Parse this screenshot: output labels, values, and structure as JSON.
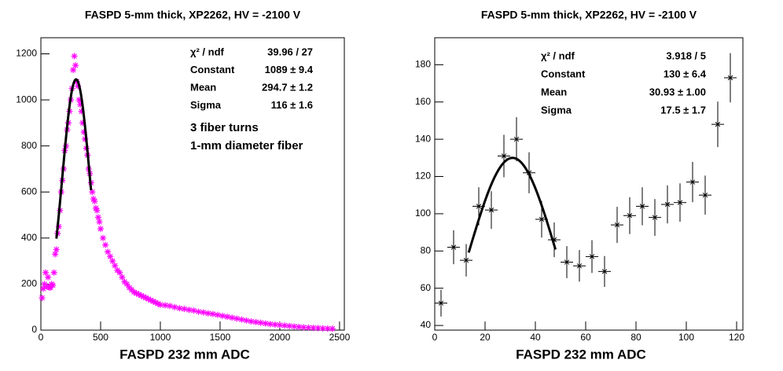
{
  "chart_data": [
    {
      "type": "scatter",
      "title": "FASPD 5-mm thick, XP2262, HV = -2100 V",
      "x_label": "FASPD 232 mm ADC",
      "color": "#ff00ff",
      "x": [
        10,
        20,
        30,
        40,
        50,
        60,
        70,
        80,
        90,
        100,
        110,
        120,
        130,
        140,
        150,
        160,
        170,
        180,
        190,
        200,
        210,
        220,
        230,
        240,
        250,
        260,
        270,
        280,
        290,
        300,
        310,
        320,
        330,
        340,
        350,
        360,
        370,
        380,
        390,
        400,
        410,
        420,
        430,
        440,
        450,
        460,
        470,
        480,
        490,
        500,
        520,
        540,
        560,
        580,
        600,
        620,
        640,
        660,
        680,
        700,
        720,
        740,
        760,
        780,
        800,
        820,
        840,
        860,
        880,
        900,
        920,
        940,
        960,
        980,
        1000,
        1040,
        1080,
        1120,
        1160,
        1200,
        1240,
        1280,
        1320,
        1360,
        1400,
        1440,
        1480,
        1520,
        1560,
        1600,
        1640,
        1680,
        1720,
        1760,
        1800,
        1840,
        1880,
        1920,
        1960,
        2000,
        2040,
        2080,
        2120,
        2160,
        2200,
        2240,
        2280,
        2320,
        2360,
        2400,
        2440
      ],
      "values": [
        140,
        180,
        200,
        250,
        190,
        230,
        185,
        185,
        200,
        195,
        250,
        330,
        350,
        420,
        450,
        520,
        600,
        650,
        700,
        780,
        800,
        870,
        900,
        950,
        1000,
        1050,
        1130,
        1190,
        1150,
        1080,
        1060,
        1000,
        980,
        950,
        900,
        860,
        830,
        790,
        760,
        700,
        680,
        640,
        600,
        570,
        560,
        530,
        520,
        490,
        470,
        440,
        400,
        370,
        340,
        320,
        300,
        280,
        260,
        250,
        230,
        210,
        200,
        185,
        175,
        165,
        160,
        155,
        150,
        145,
        140,
        135,
        130,
        125,
        120,
        115,
        110,
        108,
        105,
        100,
        95,
        92,
        88,
        85,
        80,
        77,
        73,
        70,
        66,
        62,
        58,
        54,
        50,
        46,
        42,
        38,
        35,
        32,
        29,
        26,
        24,
        22,
        20,
        18,
        16,
        14,
        12,
        11,
        10,
        9,
        8,
        7,
        6
      ],
      "xlim": [
        0,
        2540
      ],
      "ylim": [
        0,
        1270
      ],
      "xticks": [
        0,
        500,
        1000,
        1500,
        2000,
        2500
      ],
      "yticks": [
        0,
        200,
        400,
        600,
        800,
        1000,
        1200
      ],
      "fit": {
        "constant": 1089,
        "mean": 294.7,
        "sigma": 116,
        "range": [
          130,
          420
        ],
        "color": "#000000"
      },
      "stats": [
        {
          "label": "χ² / ndf",
          "value": "39.96 / 27"
        },
        {
          "label": "Constant",
          "value": "1089 ± 9.4"
        },
        {
          "label": "Mean",
          "value": "294.7 ± 1.2"
        },
        {
          "label": "Sigma",
          "value": "116 ± 1.6"
        }
      ],
      "annotations": [
        {
          "text": "3 fiber turns",
          "color": "#0000ff"
        },
        {
          "text": "1-mm diameter fiber",
          "color": "#ff0000"
        }
      ]
    },
    {
      "type": "errorbar",
      "title": "FASPD 5-mm thick, XP2262, HV = -2100 V",
      "x_label": "FASPD 232 mm ADC",
      "color": "#000000",
      "x": [
        2.5,
        7.5,
        12.5,
        17.5,
        22.5,
        27.5,
        32.5,
        37.5,
        42.5,
        47.5,
        52.5,
        57.5,
        62.5,
        67.5,
        72.5,
        77.5,
        82.5,
        87.5,
        92.5,
        97.5,
        102.5,
        107.5,
        112.5,
        117.5
      ],
      "values": [
        52,
        82,
        75,
        104,
        102,
        131,
        140,
        122,
        97,
        86,
        74,
        72,
        77,
        69,
        94,
        99,
        104,
        98,
        105,
        106,
        117,
        110,
        148,
        173
      ],
      "errors": [
        7.2,
        9.1,
        8.7,
        10.2,
        10.1,
        11.4,
        11.8,
        11,
        9.8,
        9.3,
        8.6,
        8.5,
        8.8,
        8.3,
        9.7,
        9.9,
        10.2,
        9.9,
        10.2,
        10.3,
        10.8,
        10.5,
        12.2,
        13.2
      ],
      "xerr": 2.5,
      "xlim": [
        0,
        122.5
      ],
      "ylim": [
        37.5,
        194.5
      ],
      "xticks": [
        0,
        20,
        40,
        60,
        80,
        100,
        120
      ],
      "yticks": [
        40,
        60,
        80,
        100,
        120,
        140,
        160,
        180
      ],
      "fit": {
        "constant": 130,
        "mean": 30.93,
        "sigma": 17.5,
        "range": [
          13.5,
          48
        ],
        "color": "#000000"
      },
      "stats": [
        {
          "label": "χ² / ndf",
          "value": "3.918 / 5"
        },
        {
          "label": "Constant",
          "value": "130 ± 6.4"
        },
        {
          "label": "Mean",
          "value": "30.93 ± 1.00"
        },
        {
          "label": "Sigma",
          "value": "17.5 ± 1.7"
        }
      ]
    }
  ]
}
